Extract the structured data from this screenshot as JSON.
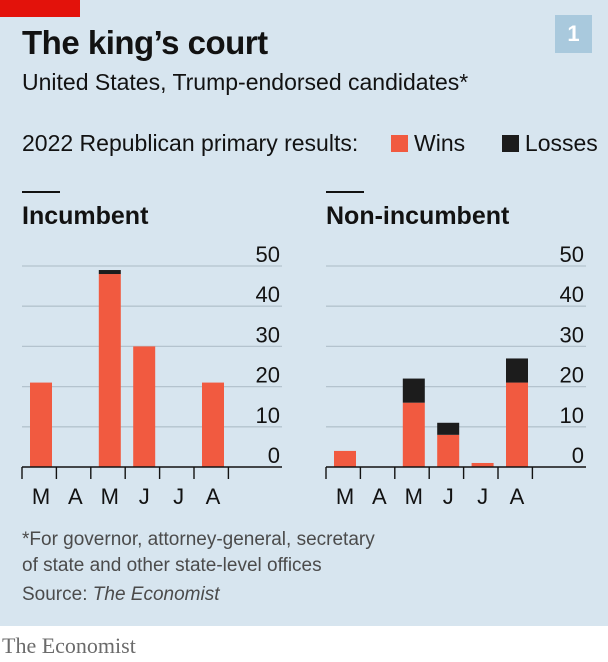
{
  "header": {
    "title": "The king’s court",
    "subtitle": "United States, Trump-endorsed candidates*",
    "number_badge": "1"
  },
  "legend": {
    "label": "2022 Republican primary results:",
    "wins": "Wins",
    "losses": "Losses"
  },
  "footnote": {
    "line1": "*For governor, attorney-general, secretary",
    "line2": "of state and other state-level offices"
  },
  "source": {
    "prefix": "Source: ",
    "name": "The Economist"
  },
  "brand": "The Economist",
  "colors": {
    "wins": "#f15a40",
    "losses": "#1c1c1c",
    "background": "#d7e5ef",
    "gridline": "#b4c3ce",
    "accent_red": "#e3120b",
    "badge": "#a9c9dd"
  },
  "chart_data": [
    {
      "type": "bar",
      "stacked": true,
      "title": "Incumbent",
      "categories": [
        "M",
        "A",
        "M",
        "J",
        "J",
        "A"
      ],
      "series": [
        {
          "name": "Wins",
          "values": [
            21,
            0,
            48,
            30,
            0,
            21
          ]
        },
        {
          "name": "Losses",
          "values": [
            0,
            0,
            1,
            0,
            0,
            0
          ]
        }
      ],
      "yticks": [
        0,
        10,
        20,
        30,
        40,
        50
      ],
      "ylim": [
        0,
        50
      ],
      "grid": true
    },
    {
      "type": "bar",
      "stacked": true,
      "title": "Non-incumbent",
      "categories": [
        "M",
        "A",
        "M",
        "J",
        "J",
        "A"
      ],
      "series": [
        {
          "name": "Wins",
          "values": [
            4,
            0,
            16,
            8,
            1,
            21
          ]
        },
        {
          "name": "Losses",
          "values": [
            0,
            0,
            6,
            3,
            0,
            6
          ]
        }
      ],
      "yticks": [
        0,
        10,
        20,
        30,
        40,
        50
      ],
      "ylim": [
        0,
        50
      ],
      "grid": true
    }
  ]
}
